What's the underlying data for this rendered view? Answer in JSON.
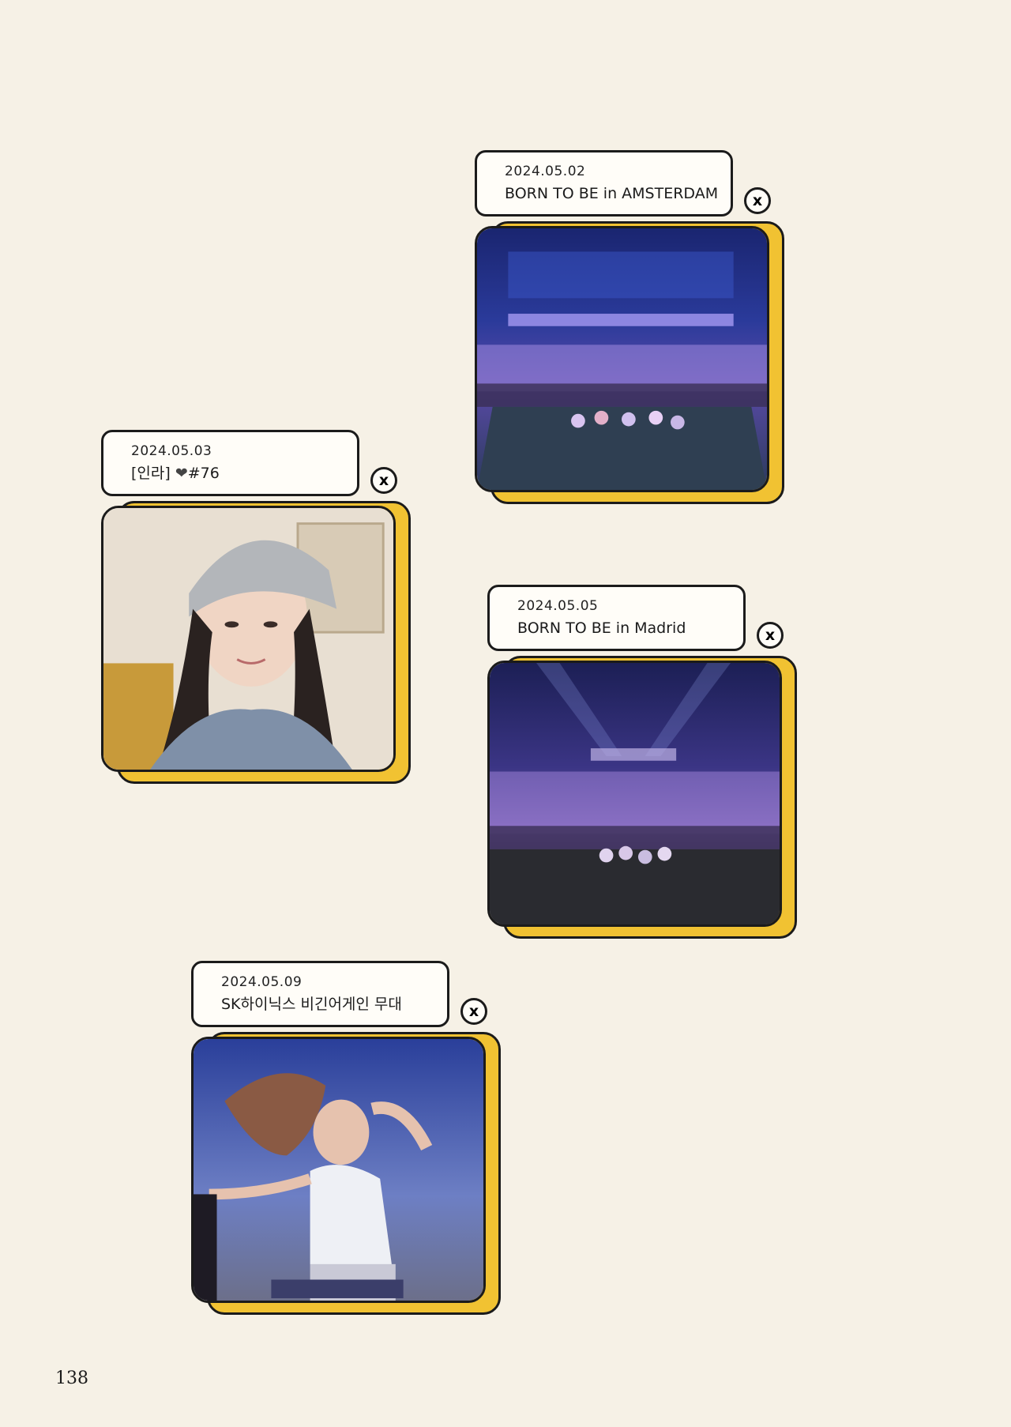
{
  "page": {
    "number": "138"
  },
  "close_glyph": "x",
  "colors": {
    "background": "#f6f1e6",
    "frame_yellow": "#f1c232",
    "outline": "#1b1b1b"
  },
  "cards": [
    {
      "date": "2024.05.02",
      "caption": "BORN TO BE in AMSTERDAM",
      "photo": "concert stage photo, Amsterdam"
    },
    {
      "date": "2024.05.03",
      "caption_prefix": "[인라] ",
      "caption_heart": "❤",
      "caption_suffix": "#76",
      "photo": "selfie with grey beanie"
    },
    {
      "date": "2024.05.05",
      "caption": "BORN TO BE in Madrid",
      "photo": "concert stage photo, Madrid"
    },
    {
      "date": "2024.05.09",
      "caption": "SK하이닉스 비긴어게인 무대",
      "photo": "dancer on stage with flowing hair"
    }
  ]
}
